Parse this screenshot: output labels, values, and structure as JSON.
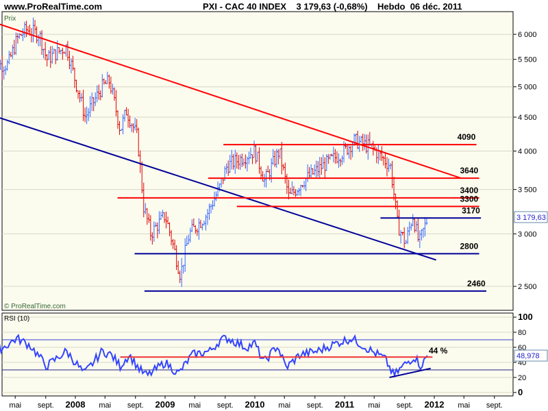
{
  "header": {
    "site": "www.ProRealTime.com",
    "title": "PXI - CAC 40 INDEX    3 179,63 (-0,68%)    Hebdo  06 déc. 2011"
  },
  "chart_data": [
    {
      "type": "ohlc-line",
      "title": "Prix",
      "scale": "log",
      "ylim": [
        2420,
        6300
      ],
      "yticks": [
        6000,
        5500,
        5000,
        4500,
        4000,
        3500,
        3000,
        2500
      ],
      "ytick_labels": [
        "6 000",
        "5 500",
        "5 000",
        "4 500",
        "4 000",
        "3 500",
        "3 000",
        "2 500"
      ],
      "last_value_label": "3 179,63",
      "copyright": "© ProRealTime.com",
      "series_keypoints": [
        [
          2007.25,
          5400
        ],
        [
          2007.35,
          5900
        ],
        [
          2007.45,
          6100
        ],
        [
          2007.6,
          6000
        ],
        [
          2007.68,
          5500
        ],
        [
          2007.9,
          5750
        ],
        [
          2008.0,
          5100
        ],
        [
          2008.11,
          4500
        ],
        [
          2008.3,
          5000
        ],
        [
          2008.38,
          5100
        ],
        [
          2008.5,
          4300
        ],
        [
          2008.57,
          4600
        ],
        [
          2008.69,
          4200
        ],
        [
          2008.76,
          3300
        ],
        [
          2008.84,
          3000
        ],
        [
          2009.0,
          3200
        ],
        [
          2009.17,
          2600
        ],
        [
          2009.27,
          3000
        ],
        [
          2009.46,
          3200
        ],
        [
          2009.6,
          3500
        ],
        [
          2009.69,
          3800
        ],
        [
          2010.0,
          4000
        ],
        [
          2010.11,
          3600
        ],
        [
          2010.27,
          4000
        ],
        [
          2010.38,
          3400
        ],
        [
          2010.53,
          3600
        ],
        [
          2010.76,
          3800
        ],
        [
          2011.0,
          4000
        ],
        [
          2011.11,
          4150
        ],
        [
          2011.3,
          4050
        ],
        [
          2011.51,
          3800
        ],
        [
          2011.59,
          3100
        ],
        [
          2011.68,
          2900
        ],
        [
          2011.76,
          3200
        ],
        [
          2011.83,
          2900
        ],
        [
          2011.93,
          3180
        ]
      ],
      "trendlines": [
        {
          "color": "#ff0000",
          "from": [
            2007.1,
            6250
          ],
          "to": [
            2012.3,
            3640
          ]
        },
        {
          "color": "#000099",
          "from": [
            2007.09,
            4520
          ],
          "to": [
            2012.02,
            2740
          ]
        }
      ],
      "levels": [
        {
          "label": "4090",
          "value": 4090,
          "from": 2009.65,
          "to": 2012.47,
          "color": "#ff0000"
        },
        {
          "label": "3640",
          "value": 3640,
          "from": 2009.48,
          "to": 2012.5,
          "color": "#ff0000"
        },
        {
          "label": "3400",
          "value": 3400,
          "from": 2008.47,
          "to": 2012.5,
          "color": "#ff0000"
        },
        {
          "label": "3300",
          "value": 3300,
          "from": 2009.8,
          "to": 2012.5,
          "color": "#ff0000"
        },
        {
          "label": "3170",
          "value": 3170,
          "from": 2011.4,
          "to": 2012.52,
          "color": "#000099"
        },
        {
          "label": "2800",
          "value": 2800,
          "from": 2008.66,
          "to": 2012.5,
          "color": "#000099"
        },
        {
          "label": "2460",
          "value": 2460,
          "from": 2008.77,
          "to": 2012.58,
          "color": "#000099"
        }
      ]
    },
    {
      "type": "line",
      "title": "RSI (10)",
      "ylim": [
        0,
        100
      ],
      "yticks": [
        100,
        80,
        60,
        40,
        20,
        0
      ],
      "ytick_labels": [
        "100",
        "80",
        "60",
        "40",
        "20",
        "0"
      ],
      "last_value_label": "48,978",
      "annotation": "44 %",
      "bands": [
        70,
        30
      ],
      "level": {
        "value": 47,
        "from": 2008.5,
        "to": 2011.98
      },
      "trendline": {
        "from": [
          2011.5,
          20
        ],
        "to": [
          2011.96,
          32
        ]
      },
      "series_keypoints": [
        [
          2007.0,
          55
        ],
        [
          2007.2,
          60
        ],
        [
          2007.35,
          72
        ],
        [
          2007.5,
          62
        ],
        [
          2007.68,
          35
        ],
        [
          2007.9,
          55
        ],
        [
          2008.0,
          40
        ],
        [
          2008.1,
          25
        ],
        [
          2008.3,
          55
        ],
        [
          2008.4,
          50
        ],
        [
          2008.5,
          35
        ],
        [
          2008.6,
          50
        ],
        [
          2008.72,
          30
        ],
        [
          2008.8,
          22
        ],
        [
          2009.0,
          40
        ],
        [
          2009.15,
          25
        ],
        [
          2009.3,
          50
        ],
        [
          2009.5,
          55
        ],
        [
          2009.62,
          70
        ],
        [
          2009.7,
          72
        ],
        [
          2009.9,
          60
        ],
        [
          2010.0,
          65
        ],
        [
          2010.1,
          40
        ],
        [
          2010.25,
          62
        ],
        [
          2010.35,
          33
        ],
        [
          2010.5,
          50
        ],
        [
          2010.7,
          55
        ],
        [
          2010.9,
          65
        ],
        [
          2011.08,
          72
        ],
        [
          2011.3,
          55
        ],
        [
          2011.45,
          45
        ],
        [
          2011.55,
          22
        ],
        [
          2011.65,
          35
        ],
        [
          2011.78,
          48
        ],
        [
          2011.85,
          35
        ],
        [
          2011.93,
          49
        ]
      ]
    },
    {
      "type": "axis",
      "x_labels": [
        {
          "t": "mai",
          "d": 2007.33
        },
        {
          "t": "sept.",
          "d": 2007.67
        },
        {
          "t": "2008",
          "d": 2008.0,
          "bold": true
        },
        {
          "t": "mai",
          "d": 2008.33
        },
        {
          "t": "sept.",
          "d": 2008.67
        },
        {
          "t": "2009",
          "d": 2009.0,
          "bold": true
        },
        {
          "t": "mai",
          "d": 2009.33
        },
        {
          "t": "sept.",
          "d": 2009.67
        },
        {
          "t": "2010",
          "d": 2010.0,
          "bold": true
        },
        {
          "t": "mai",
          "d": 2010.33
        },
        {
          "t": "sept.",
          "d": 2010.67
        },
        {
          "t": "2011",
          "d": 2011.0,
          "bold": true
        },
        {
          "t": "mai",
          "d": 2011.33
        },
        {
          "t": "sept.",
          "d": 2011.67
        },
        {
          "t": "2012",
          "d": 2012.0,
          "bold": true
        },
        {
          "t": "mai",
          "d": 2012.33
        },
        {
          "t": "sept.",
          "d": 2012.67
        }
      ]
    }
  ]
}
